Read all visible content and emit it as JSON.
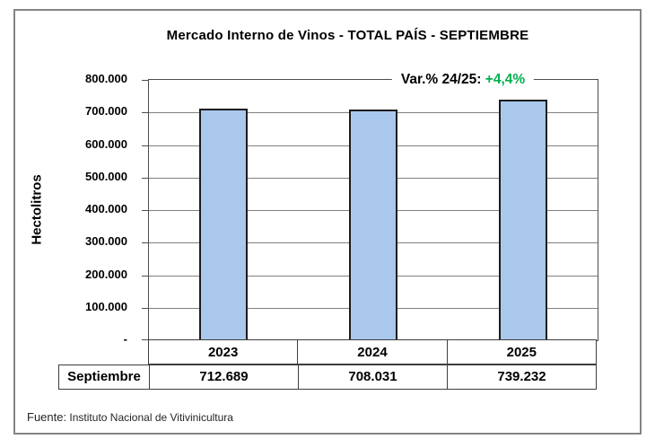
{
  "chart_data": {
    "type": "bar",
    "title": "Mercado Interno de Vinos  - TOTAL PAÍS  - SEPTIEMBRE",
    "ylabel": "Hectolitros",
    "xlabel": "",
    "categories": [
      "2023",
      "2024",
      "2025"
    ],
    "values": [
      712689,
      708031,
      739232
    ],
    "value_labels": [
      "712.689",
      "708.031",
      "739.232"
    ],
    "row_label": "Septiembre",
    "ylim": [
      0,
      800000
    ],
    "ytick_step": 100000,
    "ytick_labels": [
      "-",
      "100.000",
      "200.000",
      "300.000",
      "400.000",
      "500.000",
      "600.000",
      "700.000",
      "800.000"
    ],
    "grid": true,
    "legend": "none",
    "annotation": {
      "prefix": "Var.% 24/25: ",
      "value": "+4,4%",
      "value_color": "#00B050"
    },
    "bar_fill": "#a9c8ec",
    "bar_border": "#1c1c1c",
    "grid_color": "#808080"
  },
  "footer": {
    "prefix": "Fuente:",
    "text": " Instituto Nacional de Vitivinicultura"
  }
}
